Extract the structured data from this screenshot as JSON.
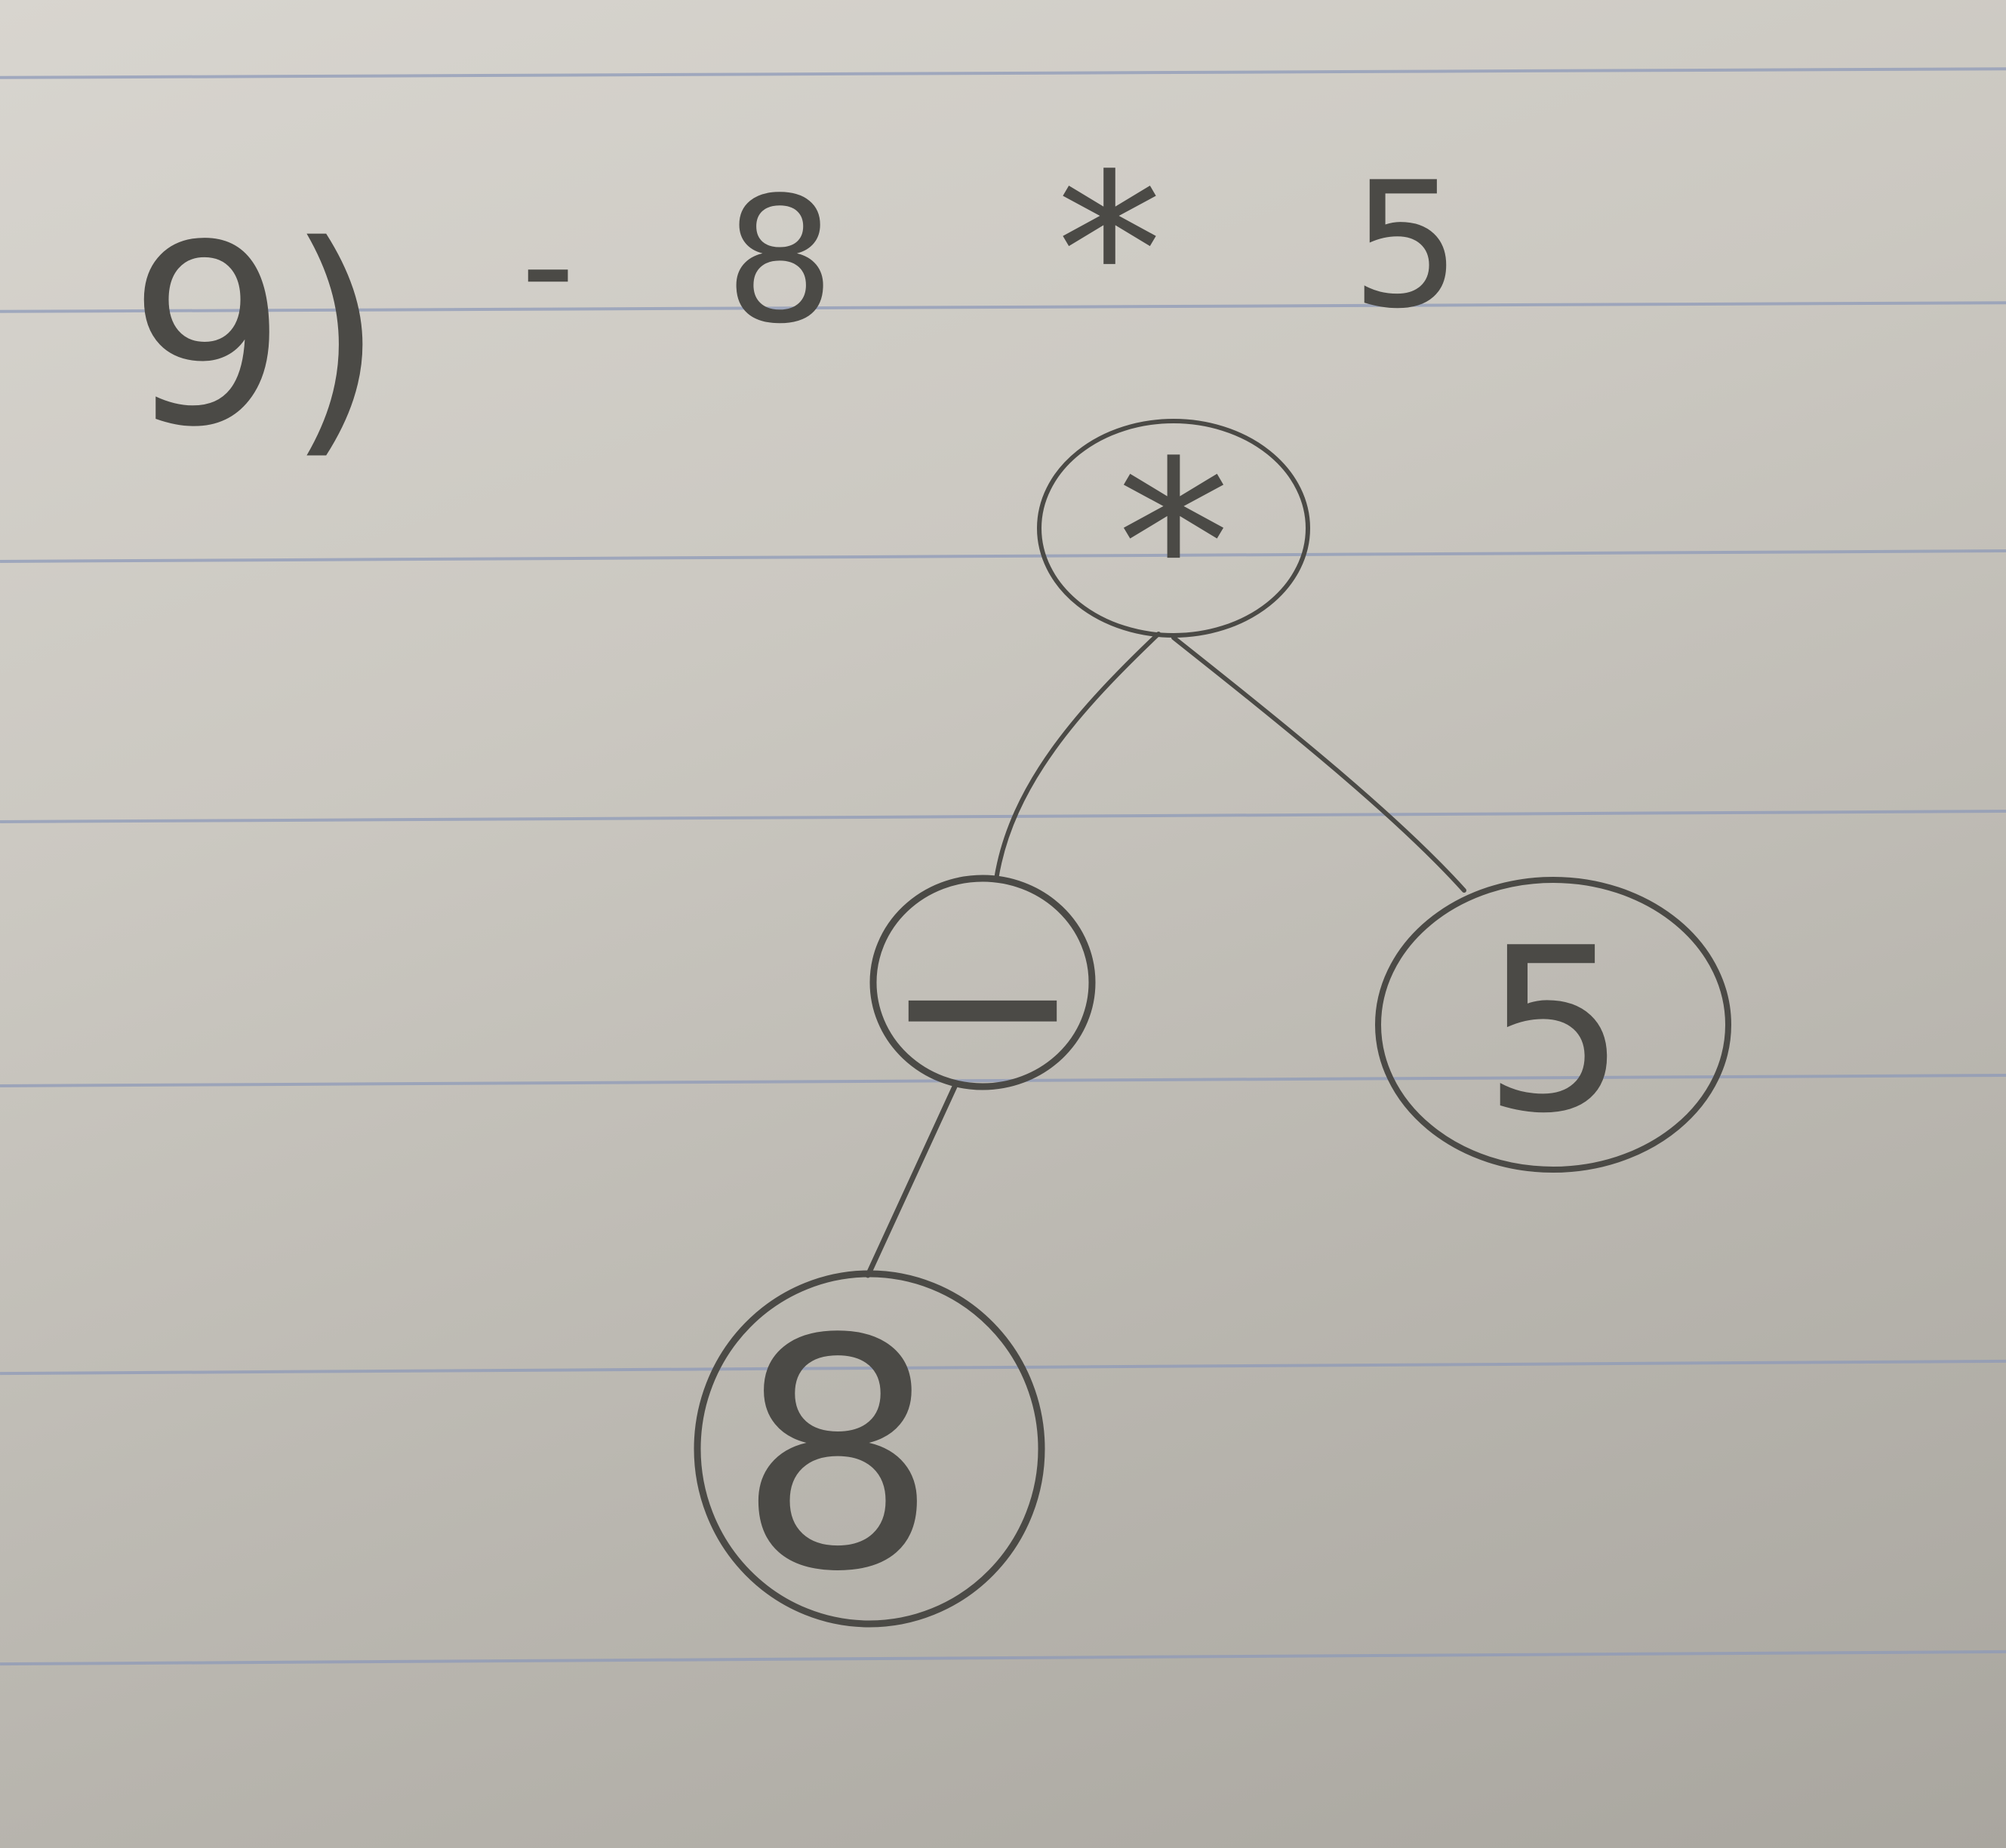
{
  "problem": {
    "number_label": "9)",
    "expression_tokens": [
      "-",
      "8",
      "*",
      "5"
    ]
  },
  "tree": {
    "root": {
      "label": "*"
    },
    "left_child": {
      "label": "—"
    },
    "right_child": {
      "label": "5"
    },
    "left_grandchild": {
      "label": "8"
    }
  },
  "colors": {
    "pencil": "#4b4a46",
    "ruled_line": "#8e9ab8",
    "paper": "#cbc8c1"
  }
}
